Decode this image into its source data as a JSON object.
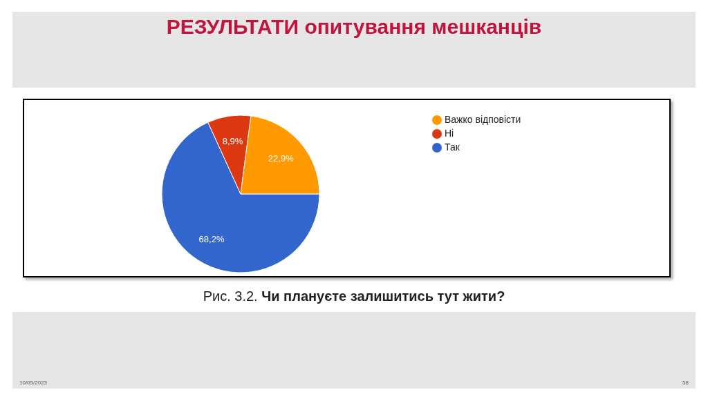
{
  "chart_data": {
    "type": "pie",
    "title": "РЕЗУЛЬТАТИ опитування мешканців",
    "categories": [
      "Так",
      "Ні",
      "Важко відповісти"
    ],
    "values": [
      68.2,
      8.9,
      22.9
    ],
    "colors": [
      "#3366cc",
      "#dc3912",
      "#ff9900"
    ],
    "value_labels": [
      "68,2%",
      "8,9%",
      "22,9%"
    ],
    "legend": "top right",
    "annotations": [
      "Рис. 3.2. Чи плануєте залишитись тут жити?",
      "10/05/2023",
      "58"
    ]
  }
}
